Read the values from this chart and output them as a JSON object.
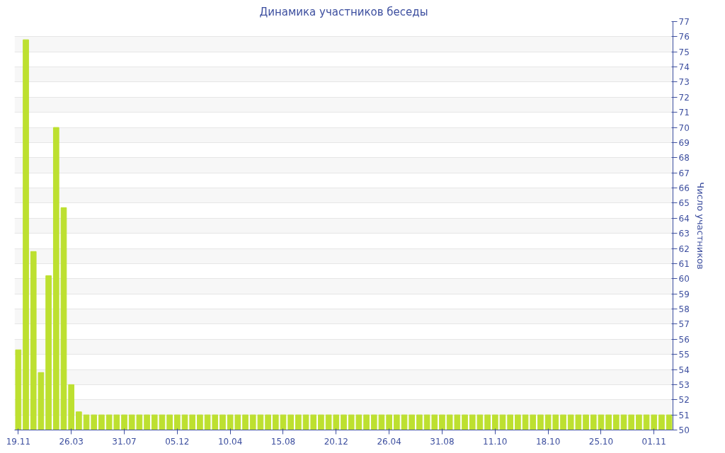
{
  "chart_data": {
    "type": "bar",
    "title": "Динамика участников беседы",
    "ylabel": "Число участников",
    "categories": [
      "19.11",
      null,
      null,
      null,
      null,
      null,
      null,
      "26.03",
      null,
      null,
      null,
      null,
      null,
      null,
      "31.07",
      null,
      null,
      null,
      null,
      null,
      null,
      "05.12",
      null,
      null,
      null,
      null,
      null,
      null,
      "10.04",
      null,
      null,
      null,
      null,
      null,
      null,
      "15.08",
      null,
      null,
      null,
      null,
      null,
      null,
      "20.12",
      null,
      null,
      null,
      null,
      null,
      null,
      "26.04",
      null,
      null,
      null,
      null,
      null,
      null,
      "31.08",
      null,
      null,
      null,
      null,
      null,
      null,
      "11.10",
      null,
      null,
      null,
      null,
      null,
      null,
      "18.10",
      null,
      null,
      null,
      null,
      null,
      null,
      "25.10",
      null,
      null,
      null,
      null,
      null,
      null,
      "01.11",
      null,
      null
    ],
    "values": [
      55.3,
      75.8,
      61.8,
      53.8,
      60.2,
      70,
      64.7,
      53,
      51.2,
      51,
      51,
      51,
      51,
      51,
      51,
      51,
      51,
      51,
      51,
      51,
      51,
      51,
      51,
      51,
      51,
      51,
      51,
      51,
      51,
      51,
      51,
      51,
      51,
      51,
      51,
      51,
      51,
      51,
      51,
      51,
      51,
      51,
      51,
      51,
      51,
      51,
      51,
      51,
      51,
      51,
      51,
      51,
      51,
      51,
      51,
      51,
      51,
      51,
      51,
      51,
      51,
      51,
      51,
      51,
      51,
      51,
      51,
      51,
      51,
      51,
      51,
      51,
      51,
      51,
      51,
      51,
      51,
      51,
      51,
      51,
      51,
      51,
      51,
      51,
      51,
      51,
      51
    ],
    "color": "#bde030",
    "ylim": [
      50,
      77
    ],
    "yticks": [
      50,
      51,
      52,
      53,
      54,
      55,
      56,
      57,
      58,
      59,
      60,
      61,
      62,
      63,
      64,
      65,
      66,
      67,
      68,
      69,
      70,
      71,
      72,
      73,
      74,
      75,
      76,
      77
    ],
    "grid": "y"
  }
}
